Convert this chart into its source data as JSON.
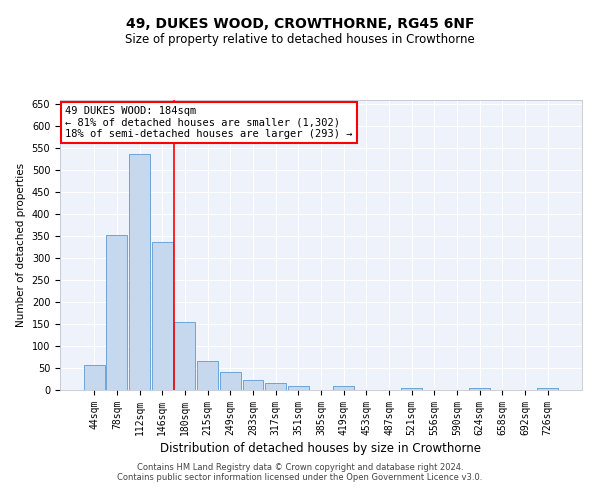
{
  "title": "49, DUKES WOOD, CROWTHORNE, RG45 6NF",
  "subtitle": "Size of property relative to detached houses in Crowthorne",
  "xlabel": "Distribution of detached houses by size in Crowthorne",
  "ylabel": "Number of detached properties",
  "bar_color": "#c5d8ed",
  "bar_edge_color": "#5b9bd5",
  "background_color": "#eef2fb",
  "grid_color": "#ffffff",
  "tick_labels": [
    "44sqm",
    "78sqm",
    "112sqm",
    "146sqm",
    "180sqm",
    "215sqm",
    "249sqm",
    "283sqm",
    "317sqm",
    "351sqm",
    "385sqm",
    "419sqm",
    "453sqm",
    "487sqm",
    "521sqm",
    "556sqm",
    "590sqm",
    "624sqm",
    "658sqm",
    "692sqm",
    "726sqm"
  ],
  "bar_heights": [
    57,
    353,
    538,
    336,
    155,
    67,
    42,
    22,
    17,
    10,
    0,
    9,
    0,
    0,
    4,
    0,
    0,
    4,
    0,
    0,
    4
  ],
  "ylim": [
    0,
    660
  ],
  "yticks": [
    0,
    50,
    100,
    150,
    200,
    250,
    300,
    350,
    400,
    450,
    500,
    550,
    600,
    650
  ],
  "red_line_x": 3.5,
  "annotation_box_text": "49 DUKES WOOD: 184sqm\n← 81% of detached houses are smaller (1,302)\n18% of semi-detached houses are larger (293) →",
  "footer_line1": "Contains HM Land Registry data © Crown copyright and database right 2024.",
  "footer_line2": "Contains public sector information licensed under the Open Government Licence v3.0.",
  "title_fontsize": 10,
  "subtitle_fontsize": 8.5,
  "annotation_fontsize": 7.5,
  "ylabel_fontsize": 7.5,
  "xlabel_fontsize": 8.5,
  "tick_fontsize": 7,
  "footer_fontsize": 6
}
